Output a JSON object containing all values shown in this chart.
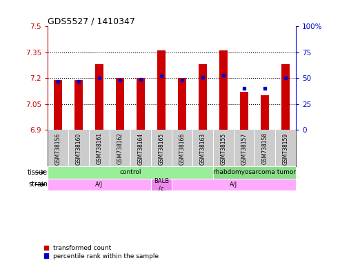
{
  "title": "GDS5527 / 1410347",
  "samples": [
    "GSM738156",
    "GSM738160",
    "GSM738161",
    "GSM738162",
    "GSM738164",
    "GSM738165",
    "GSM738166",
    "GSM738163",
    "GSM738155",
    "GSM738157",
    "GSM738158",
    "GSM738159"
  ],
  "red_values": [
    7.19,
    7.19,
    7.28,
    7.2,
    7.2,
    7.36,
    7.2,
    7.28,
    7.36,
    7.12,
    7.1,
    7.28
  ],
  "blue_values": [
    47,
    47,
    50,
    48,
    49,
    52,
    48,
    51,
    53,
    40,
    40,
    50
  ],
  "ylim_left": [
    6.9,
    7.5
  ],
  "ylim_right": [
    0,
    100
  ],
  "yticks_left": [
    6.9,
    7.05,
    7.2,
    7.35,
    7.5
  ],
  "yticks_right": [
    0,
    25,
    50,
    75,
    100
  ],
  "bar_base": 6.9,
  "bar_color": "#cc0000",
  "dot_color": "#0000cc",
  "tissue_items": [
    {
      "label": "control",
      "start": 0,
      "end": 8,
      "color": "#99ee99"
    },
    {
      "label": "rhabdomyosarcoma tumor",
      "start": 8,
      "end": 12,
      "color": "#88dd88"
    }
  ],
  "strain_items": [
    {
      "label": "A/J",
      "start": 0,
      "end": 5,
      "color": "#ffaaff"
    },
    {
      "label": "BALB\n/c",
      "start": 5,
      "end": 6,
      "color": "#ee88ee"
    },
    {
      "label": "A/J",
      "start": 6,
      "end": 12,
      "color": "#ffaaff"
    }
  ],
  "legend_red": "transformed count",
  "legend_blue": "percentile rank within the sample",
  "bg_color": "#ffffff",
  "sample_label_bg": "#cccccc",
  "bar_width": 0.4
}
